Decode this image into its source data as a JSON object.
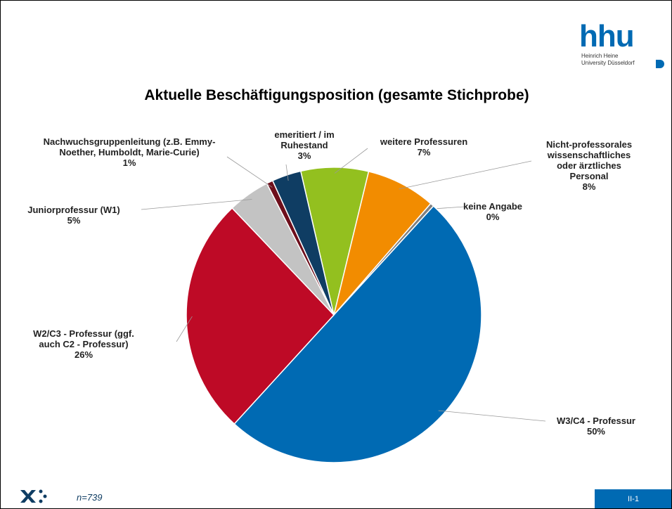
{
  "chart_data": {
    "type": "pie",
    "title": "Aktuelle Beschäftigungsposition (gesamte Stichprobe)",
    "categories": [
      "weitere Professuren",
      "Nicht-professorales\nwissenschaftliches\noder ärztliches\nPersonal",
      "keine Angabe",
      "W3/C4 - Professur",
      "W2/C3 - Professur (ggf.\nauch C2 - Professur)",
      "Juniorprofessur (W1)",
      "Nachwuchsgruppenleitung (z.B. Emmy-\nNoether, Humboldt, Marie-Curie)",
      "emeritiert / im\nRuhestand"
    ],
    "values": [
      7.4,
      7.6,
      0.4,
      50.0,
      26.1,
      4.6,
      0.7,
      3.2
    ],
    "value_labels": [
      "7%",
      "8%",
      "0%",
      "50%",
      "26%",
      "5%",
      "1%",
      "3%"
    ],
    "colors": [
      "#93c01f",
      "#f28c00",
      "#7f7f7f",
      "#006ab3",
      "#be0a26",
      "#c3c3c3",
      "#6e0f1c",
      "#0f3d63"
    ]
  },
  "logo": {
    "mark": "hhu",
    "line1": "Heinrich Heine",
    "line2": "University Düsseldorf"
  },
  "footer": {
    "note": "n=739",
    "page": "II-1"
  }
}
